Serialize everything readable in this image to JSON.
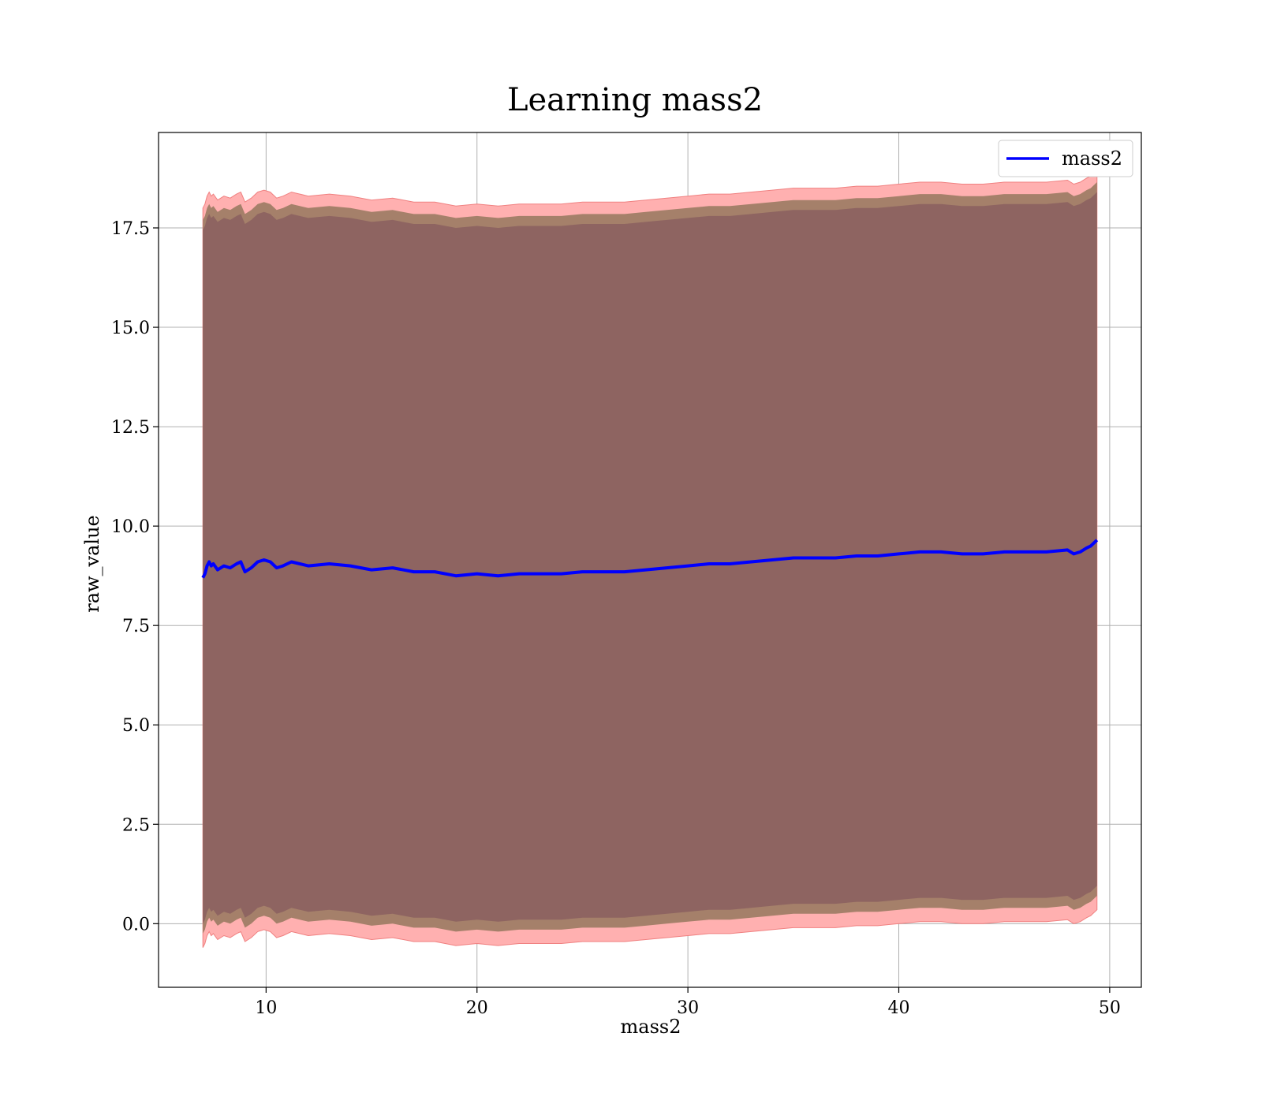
{
  "chart_data": {
    "type": "line",
    "title": "Learning mass2",
    "xlabel": "mass2",
    "ylabel": "raw_value",
    "xlim": [
      4.9,
      51.5
    ],
    "ylim": [
      -1.6,
      19.9
    ],
    "xticks": [
      10,
      20,
      30,
      40,
      50
    ],
    "xtick_labels": [
      "10",
      "20",
      "30",
      "40",
      "50"
    ],
    "yticks": [
      0.0,
      2.5,
      5.0,
      7.5,
      10.0,
      12.5,
      15.0,
      17.5
    ],
    "ytick_labels": [
      "0.0",
      "2.5",
      "5.0",
      "7.5",
      "10.0",
      "12.5",
      "15.0",
      "17.5"
    ],
    "grid": true,
    "legend": {
      "position": "top-right",
      "entries": [
        "mass2"
      ]
    },
    "series": [
      {
        "name": "mass2",
        "color": "#0000ff",
        "x": [
          7.0,
          7.1,
          7.2,
          7.3,
          7.4,
          7.5,
          7.7,
          8.0,
          8.3,
          8.6,
          8.8,
          9.0,
          9.3,
          9.6,
          9.9,
          10.2,
          10.5,
          10.8,
          11.2,
          11.6,
          12.0,
          13.0,
          14.0,
          15.0,
          16.0,
          17.0,
          18.0,
          19.0,
          20.0,
          21.0,
          22.0,
          23.0,
          24.0,
          25.0,
          26.0,
          27.0,
          28.0,
          29.0,
          30.0,
          31.0,
          32.0,
          33.0,
          34.0,
          35.0,
          36.0,
          37.0,
          38.0,
          39.0,
          40.0,
          41.0,
          42.0,
          43.0,
          44.0,
          45.0,
          46.0,
          47.0,
          48.0,
          48.3,
          48.6,
          48.9,
          49.1,
          49.4
        ],
        "y": [
          8.7,
          8.8,
          9.0,
          9.1,
          9.0,
          9.05,
          8.9,
          9.0,
          8.95,
          9.05,
          9.1,
          8.85,
          8.95,
          9.1,
          9.15,
          9.1,
          8.95,
          9.0,
          9.1,
          9.05,
          9.0,
          9.05,
          9.0,
          8.9,
          8.95,
          8.85,
          8.85,
          8.75,
          8.8,
          8.75,
          8.8,
          8.8,
          8.8,
          8.85,
          8.85,
          8.85,
          8.9,
          8.95,
          9.0,
          9.05,
          9.05,
          9.1,
          9.15,
          9.2,
          9.2,
          9.2,
          9.25,
          9.25,
          9.3,
          9.35,
          9.35,
          9.3,
          9.3,
          9.35,
          9.35,
          9.35,
          9.4,
          9.3,
          9.35,
          9.45,
          9.5,
          9.65
        ],
        "band_inner": {
          "color": "#8b6060",
          "lower_offset": -8.7,
          "upper_offset": 8.75
        },
        "band_middle": {
          "color": "#a5806a",
          "lower_offset": -8.95,
          "upper_offset": 9.0
        },
        "band_outer": {
          "color": "#ffb0b0",
          "lower_offset": -9.3,
          "upper_offset": 9.3
        }
      }
    ]
  }
}
